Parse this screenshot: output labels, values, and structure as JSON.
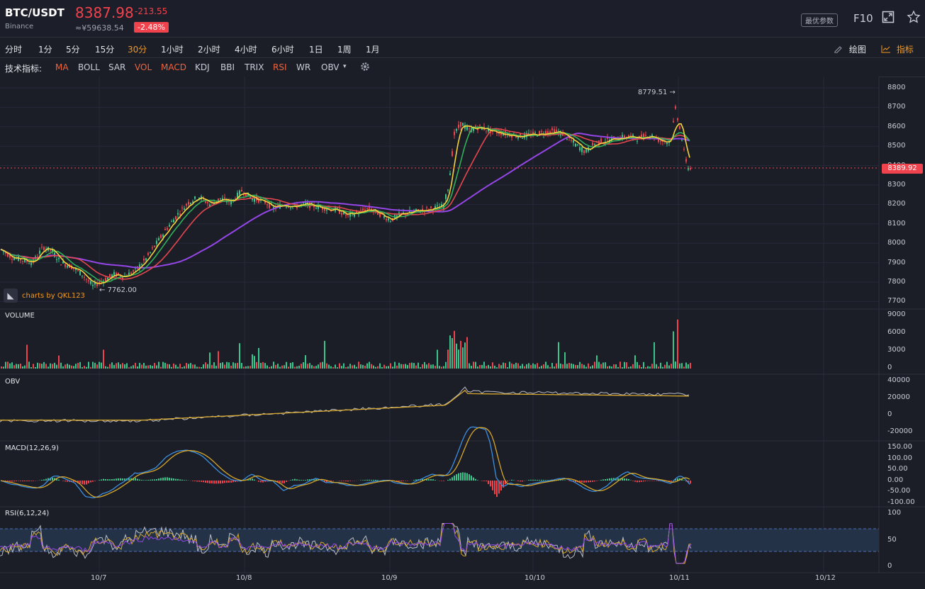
{
  "header": {
    "pair": "BTC/USDT",
    "exchange": "Binance",
    "price": "8387.98",
    "cny_price": "≈¥59638.54",
    "change": "-213.55",
    "change_pct": "-2.48%",
    "best_params": "最优参数",
    "f10": "F10"
  },
  "periods": [
    "分时",
    "1分",
    "5分",
    "15分",
    "30分",
    "1小时",
    "2小时",
    "4小时",
    "6小时",
    "1日",
    "1周",
    "1月"
  ],
  "active_period": "30分",
  "tools": {
    "draw": "绘图",
    "indicators": "指标"
  },
  "indicator_bar": {
    "label": "技术指标:",
    "items": [
      "MA",
      "BOLL",
      "SAR",
      "VOL",
      "MACD",
      "KDJ",
      "BBI",
      "TRIX",
      "RSI",
      "WR",
      "OBV"
    ],
    "active": [
      "MA",
      "VOL",
      "MACD",
      "RSI"
    ]
  },
  "panels": {
    "volume": "VOLUME",
    "obv": "OBV",
    "macd": "MACD(12,26,9)",
    "rsi": "RSI(6,12,24)"
  },
  "branding": "charts by QKL123",
  "annotations": {
    "high": "8779.51",
    "low": "7762.00",
    "last": "8389.92"
  },
  "colors": {
    "up": "#3bc48b",
    "down": "#f0434d",
    "ma_yellow": "#f5d33a",
    "ma_green": "#2fb05a",
    "ma_red": "#e3474e",
    "ma_purple": "#9446e6",
    "accent": "#f39a22"
  },
  "chart_data": {
    "type": "candlestick",
    "x_labels": [
      "10/7",
      "10/8",
      "10/9",
      "10/10",
      "10/11",
      "10/12"
    ],
    "price_axis": [
      "8800",
      "8700",
      "8600",
      "8500",
      "8400",
      "8300",
      "8200",
      "8100",
      "8000",
      "7900",
      "7800",
      "7700"
    ],
    "volume_axis": [
      "9000",
      "6000",
      "3000",
      "0"
    ],
    "obv_axis": [
      "40000",
      "20000",
      "0",
      "-20000"
    ],
    "macd_axis": [
      "150.00",
      "100.00",
      "50.00",
      "0.00",
      "-50.00",
      "-100.00"
    ],
    "rsi_axis": [
      "100",
      "50",
      "0"
    ],
    "price_path": [
      [
        0,
        7970
      ],
      [
        15,
        7930
      ],
      [
        30,
        7915
      ],
      [
        45,
        7900
      ],
      [
        60,
        7980
      ],
      [
        72,
        7960
      ],
      [
        85,
        7900
      ],
      [
        100,
        7880
      ],
      [
        115,
        7840
      ],
      [
        130,
        7780
      ],
      [
        145,
        7810
      ],
      [
        160,
        7840
      ],
      [
        175,
        7830
      ],
      [
        190,
        7860
      ],
      [
        205,
        7920
      ],
      [
        220,
        8000
      ],
      [
        235,
        8080
      ],
      [
        250,
        8150
      ],
      [
        265,
        8210
      ],
      [
        280,
        8240
      ],
      [
        295,
        8200
      ],
      [
        310,
        8230
      ],
      [
        325,
        8210
      ],
      [
        340,
        8270
      ],
      [
        355,
        8230
      ],
      [
        370,
        8220
      ],
      [
        385,
        8180
      ],
      [
        400,
        8200
      ],
      [
        415,
        8190
      ],
      [
        430,
        8200
      ],
      [
        445,
        8190
      ],
      [
        460,
        8180
      ],
      [
        475,
        8170
      ],
      [
        490,
        8140
      ],
      [
        505,
        8160
      ],
      [
        520,
        8180
      ],
      [
        535,
        8150
      ],
      [
        550,
        8120
      ],
      [
        565,
        8150
      ],
      [
        580,
        8160
      ],
      [
        595,
        8170
      ],
      [
        610,
        8180
      ],
      [
        625,
        8190
      ],
      [
        632,
        8300
      ],
      [
        640,
        8560
      ],
      [
        650,
        8620
      ],
      [
        660,
        8580
      ],
      [
        675,
        8600
      ],
      [
        690,
        8580
      ],
      [
        705,
        8570
      ],
      [
        720,
        8560
      ],
      [
        735,
        8550
      ],
      [
        750,
        8560
      ],
      [
        765,
        8570
      ],
      [
        780,
        8580
      ],
      [
        795,
        8560
      ],
      [
        810,
        8510
      ],
      [
        825,
        8470
      ],
      [
        840,
        8520
      ],
      [
        855,
        8530
      ],
      [
        870,
        8540
      ],
      [
        885,
        8550
      ],
      [
        900,
        8540
      ],
      [
        915,
        8560
      ],
      [
        930,
        8530
      ],
      [
        945,
        8520
      ],
      [
        952,
        8690
      ],
      [
        958,
        8600
      ],
      [
        965,
        8450
      ],
      [
        970,
        8390
      ],
      [
        975,
        8385
      ]
    ],
    "high": 8779.51,
    "low": 7762.0,
    "last": 8389.92
  }
}
